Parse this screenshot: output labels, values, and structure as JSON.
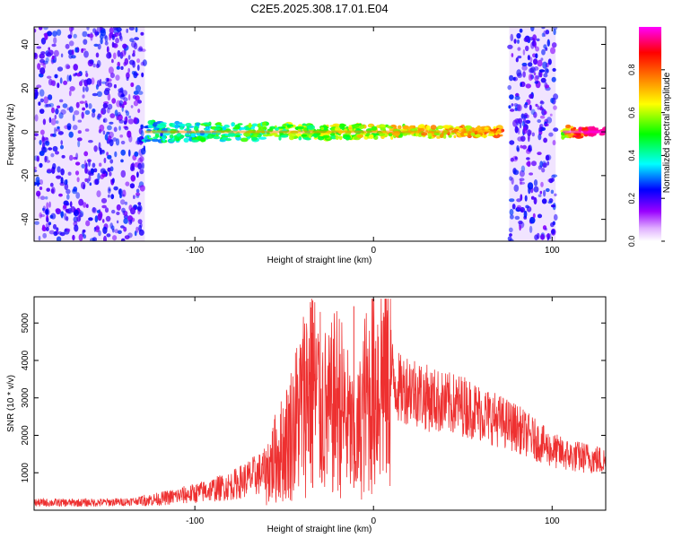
{
  "page_title": "C2E5.2025.308.17.01.E04",
  "chart_data": [
    {
      "type": "heatmap",
      "title": "C2E5.2025.308.17.01.E04",
      "xlabel": "Height of straight line (km)",
      "ylabel": "Frequency (Hz)",
      "xlim": [
        -190,
        130
      ],
      "ylim": [
        -50,
        48
      ],
      "xticks": [
        -100,
        0,
        100
      ],
      "yticks": [
        -40,
        -20,
        0,
        20,
        40
      ],
      "colorbar": {
        "label": "Normalized spectral amplitude",
        "range": [
          0,
          1
        ],
        "ticks": [
          "0.0",
          "0.2",
          "0.4",
          "0.6",
          "0.8"
        ],
        "tick_values": [
          0,
          0.2,
          0.4,
          0.6,
          0.8
        ],
        "colors": [
          "#ffffff",
          "#e0b0ff",
          "#9900ff",
          "#0000ff",
          "#00ffff",
          "#00ff00",
          "#ffff00",
          "#ff8000",
          "#ff0000",
          "#ff00ff"
        ]
      },
      "features": [
        {
          "name": "noise-region-left",
          "x_range": [
            -190,
            -128
          ],
          "level": 0.15
        },
        {
          "name": "signal-band",
          "x_range": [
            -128,
            72
          ],
          "center_hz": 0,
          "width_hz": 5,
          "level": 0.55
        },
        {
          "name": "noise-region-right",
          "x_range": [
            76,
            102
          ],
          "level": 0.15
        },
        {
          "name": "signal-band-right",
          "x_range": [
            106,
            130
          ],
          "center_hz": 0,
          "width_hz": 3,
          "level": 0.9
        }
      ]
    },
    {
      "type": "line",
      "xlabel": "Height of straight line (km)",
      "ylabel": "SNR (10 * v/v)",
      "xlim": [
        -190,
        130
      ],
      "ylim": [
        0,
        5700
      ],
      "xticks": [
        -100,
        0,
        100
      ],
      "yticks": [
        1000,
        2000,
        3000,
        4000,
        5000
      ],
      "color": "#ee3030",
      "series": [
        {
          "name": "SNR",
          "x": [
            -190,
            -160,
            -140,
            -120,
            -100,
            -80,
            -70,
            -60,
            -50,
            -45,
            -40,
            -35,
            -30,
            -25,
            -20,
            -15,
            -10,
            -5,
            0,
            5,
            10,
            15,
            20,
            30,
            40,
            50,
            60,
            70,
            80,
            90,
            100,
            110,
            120,
            130
          ],
          "values": [
            200,
            200,
            220,
            300,
            450,
            650,
            850,
            1050,
            1700,
            2200,
            2800,
            3500,
            2800,
            2500,
            3000,
            2400,
            1700,
            2800,
            3300,
            3700,
            3600,
            3200,
            3300,
            3000,
            2850,
            2800,
            2600,
            2400,
            2200,
            1900,
            1600,
            1450,
            1400,
            1300
          ]
        }
      ],
      "peaks": [
        {
          "x": -34,
          "value": 5600
        },
        {
          "x": -11,
          "value": 5450
        }
      ]
    }
  ]
}
